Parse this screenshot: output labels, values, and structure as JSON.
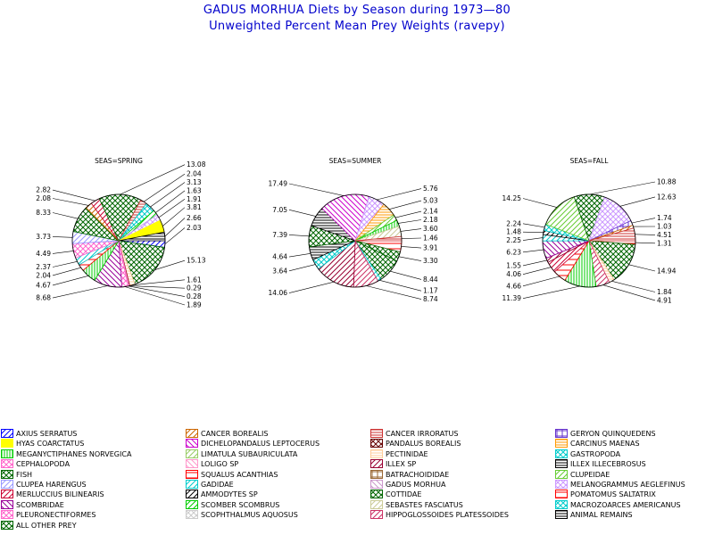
{
  "title": "GADUS MORHUA Diets by Season during 1973—80",
  "subtitle": "Unweighted Percent Mean Prey Weights (ravepy)",
  "colors": {
    "title": "#0000cc"
  },
  "legend": [
    {
      "label": "AXIUS SERRATUS",
      "color": "#0000ff",
      "pattern": "diag-fwd"
    },
    {
      "label": "HYAS COARCTATUS",
      "color": "#ffff00",
      "pattern": "solid"
    },
    {
      "label": "MEGANYCTIPHANES NORVEGICA",
      "color": "#00cc00",
      "pattern": "vertical"
    },
    {
      "label": "CEPHALOPODA",
      "color": "#ff66cc",
      "pattern": "cross-diag"
    },
    {
      "label": "FISH",
      "color": "#006600",
      "pattern": "cross-diag"
    },
    {
      "label": "CLUPEA HARENGUS",
      "color": "#9999ff",
      "pattern": "diag-fwd"
    },
    {
      "label": "MERLUCCIUS BILINEARIS",
      "color": "#cc0033",
      "pattern": "diag-fwd"
    },
    {
      "label": "SCOMBRIDAE",
      "color": "#990099",
      "pattern": "diag-back"
    },
    {
      "label": "PLEURONECTIFORMES",
      "color": "#ff66cc",
      "pattern": "cross-diag"
    },
    {
      "label": "ALL OTHER PREY",
      "color": "#006600",
      "pattern": "cross-diag"
    },
    {
      "label": "CANCER BOREALIS",
      "color": "#cc6600",
      "pattern": "diag-fwd"
    },
    {
      "label": "DICHELOPANDALUS LEPTOCERUS",
      "color": "#cc00cc",
      "pattern": "diag-back"
    },
    {
      "label": "LIMATULA SUBAURICULATA",
      "color": "#99cc66",
      "pattern": "diag-fwd"
    },
    {
      "label": "LOLIGO SP",
      "color": "#ff99cc",
      "pattern": "diag-back"
    },
    {
      "label": "SQUALUS ACANTHIAS",
      "color": "#ff0000",
      "pattern": "horiz-sparse"
    },
    {
      "label": "GADIDAE",
      "color": "#00cccc",
      "pattern": "diag-fwd"
    },
    {
      "label": "AMMODYTES SP",
      "color": "#000000",
      "pattern": "diag-fwd"
    },
    {
      "label": "SCOMBER SCOMBRUS",
      "color": "#00cc00",
      "pattern": "diag-fwd"
    },
    {
      "label": "SCOPHTHALMUS AQUOSUS",
      "color": "#cccccc",
      "pattern": "cross-diag"
    },
    {
      "label": "CANCER IRRORATUS",
      "color": "#cc3333",
      "pattern": "horizontal"
    },
    {
      "label": "PANDALUS BOREALIS",
      "color": "#660000",
      "pattern": "cross-diag"
    },
    {
      "label": "PECTINIDAE",
      "color": "#ffcc99",
      "pattern": "horizontal"
    },
    {
      "label": "ILLEX SP",
      "color": "#990033",
      "pattern": "diag-fwd"
    },
    {
      "label": "BATRACHOIDIDAE",
      "color": "#996633",
      "pattern": "grid"
    },
    {
      "label": "GADUS MORHUA",
      "color": "#cc99cc",
      "pattern": "diag-back"
    },
    {
      "label": "COTTIDAE",
      "color": "#006600",
      "pattern": "cross-diag"
    },
    {
      "label": "SEBASTES FASCIATUS",
      "color": "#cccc99",
      "pattern": "diag-fwd"
    },
    {
      "label": "HIPPOGLOSSOIDES PLATESSOIDES",
      "color": "#cc3366",
      "pattern": "diag-fwd"
    },
    {
      "label": "GERYON QUINQUEDENS",
      "color": "#6633cc",
      "pattern": "grid"
    },
    {
      "label": "CARCINUS MAENAS",
      "color": "#ff9900",
      "pattern": "horizontal"
    },
    {
      "label": "GASTROPODA",
      "color": "#00cccc",
      "pattern": "cross-diag"
    },
    {
      "label": "ILLEX ILLECEBROSUS",
      "color": "#000000",
      "pattern": "horizontal"
    },
    {
      "label": "CLUPEIDAE",
      "color": "#66cc33",
      "pattern": "diag-fwd"
    },
    {
      "label": "MELANOGRAMMUS AEGLEFINUS",
      "color": "#cc99ff",
      "pattern": "cross-diag"
    },
    {
      "label": "POMATOMUS SALTATRIX",
      "color": "#ff0000",
      "pattern": "horiz-sparse"
    },
    {
      "label": "MACROZOARCES AMERICANUS",
      "color": "#00cccc",
      "pattern": "cross-diag"
    },
    {
      "label": "ANIMAL REMAINS",
      "color": "#000000",
      "pattern": "horizontal"
    }
  ],
  "chart_data": [
    {
      "type": "pie",
      "title": "SEAS=SPRING",
      "slices": [
        {
          "category": "AXIUS SERRATUS",
          "value": 2.03
        },
        {
          "category": "FISH",
          "value": 15.13
        },
        {
          "category": "PECTINIDAE",
          "value": 1.61
        },
        {
          "category": "ILLEX SP",
          "value": 0.29
        },
        {
          "category": "LOLIGO SP",
          "value": 0.28
        },
        {
          "category": "PLEURONECTIFORMES",
          "value": 1.89
        },
        {
          "category": "SCOMBRIDAE",
          "value": 8.68
        },
        {
          "category": "MEGANYCTIPHANES NORVEGICA",
          "value": 4.67
        },
        {
          "category": "SQUALUS ACANTHIAS",
          "value": 2.04
        },
        {
          "category": "GADIDAE",
          "value": 2.37
        },
        {
          "category": "CEPHALOPODA",
          "value": 4.49
        },
        {
          "category": "CLUPEA HARENGUS",
          "value": 3.73
        },
        {
          "category": "ALL OTHER PREY",
          "value": 8.33
        },
        {
          "category": "CANCER BOREALIS",
          "value": 2.08
        },
        {
          "category": "MERLUCCIUS BILINEARIS",
          "value": 2.82
        },
        {
          "category": "COTTIDAE",
          "value": 13.08
        },
        {
          "category": "CANCER IRRORATUS",
          "value": 2.04
        },
        {
          "category": "GASTROPODA",
          "value": 3.13
        },
        {
          "category": "SCOMBER SCOMBRUS",
          "value": 1.63
        },
        {
          "category": "MELANOGRAMMUS AEGLEFINUS",
          "value": 1.91
        },
        {
          "category": "HYAS COARCTATUS",
          "value": 3.81
        },
        {
          "category": "ILLEX ILLECEBROSUS",
          "value": 2.66
        }
      ]
    },
    {
      "type": "pie",
      "title": "SEAS=SUMMER",
      "slices": [
        {
          "category": "POMATOMUS SALTATRIX",
          "value": 3.91
        },
        {
          "category": "FISH",
          "value": 3.3
        },
        {
          "category": "COTTIDAE",
          "value": 8.44
        },
        {
          "category": "GADIDAE",
          "value": 1.17
        },
        {
          "category": "HIPPOGLOSSOIDES PLATESSOIDES",
          "value": 8.74
        },
        {
          "category": "ILLEX SP",
          "value": 14.06
        },
        {
          "category": "MACROZOARCES AMERICANUS",
          "value": 3.64
        },
        {
          "category": "ANIMAL REMAINS",
          "value": 4.64
        },
        {
          "category": "ALL OTHER PREY",
          "value": 7.39
        },
        {
          "category": "ILLEX ILLECEBROSUS",
          "value": 7.05
        },
        {
          "category": "DICHELOPANDALUS LEPTOCERUS",
          "value": 17.49
        },
        {
          "category": "MELANOGRAMMUS AEGLEFINUS",
          "value": 5.76
        },
        {
          "category": "CARCINUS MAENAS",
          "value": 5.03
        },
        {
          "category": "CLUPEIDAE",
          "value": 2.14
        },
        {
          "category": "MEGANYCTIPHANES NORVEGICA",
          "value": 2.18
        },
        {
          "category": "SEBASTES FASCIATUS",
          "value": 3.6
        },
        {
          "category": "CANCER IRRORATUS",
          "value": 1.46
        }
      ]
    },
    {
      "type": "pie",
      "title": "SEAS=FALL",
      "slices": [
        {
          "category": "SQUALUS ACANTHIAS",
          "value": 1.31
        },
        {
          "category": "FISH",
          "value": 14.94
        },
        {
          "category": "PECTINIDAE",
          "value": 1.84
        },
        {
          "category": "HIPPOGLOSSOIDES PLATESSOIDES",
          "value": 4.91
        },
        {
          "category": "MEGANYCTIPHANES NORVEGICA",
          "value": 11.39
        },
        {
          "category": "POMATOMUS SALTATRIX",
          "value": 4.66
        },
        {
          "category": "MERLUCCIUS BILINEARIS",
          "value": 4.06
        },
        {
          "category": "ILLEX SP",
          "value": 1.55
        },
        {
          "category": "SCOMBRIDAE",
          "value": 6.23
        },
        {
          "category": "GADIDAE",
          "value": 2.25
        },
        {
          "category": "AMMODYTES SP",
          "value": 1.48
        },
        {
          "category": "MACROZOARCES AMERICANUS",
          "value": 2.24
        },
        {
          "category": "CLUPEIDAE",
          "value": 14.25
        },
        {
          "category": "COTTIDAE",
          "value": 10.88
        },
        {
          "category": "MELANOGRAMMUS AEGLEFINUS",
          "value": 12.63
        },
        {
          "category": "GERYON QUINQUEDENS",
          "value": 1.74
        },
        {
          "category": "CANCER BOREALIS",
          "value": 1.03
        },
        {
          "category": "CANCER IRRORATUS",
          "value": 4.51
        }
      ]
    }
  ]
}
